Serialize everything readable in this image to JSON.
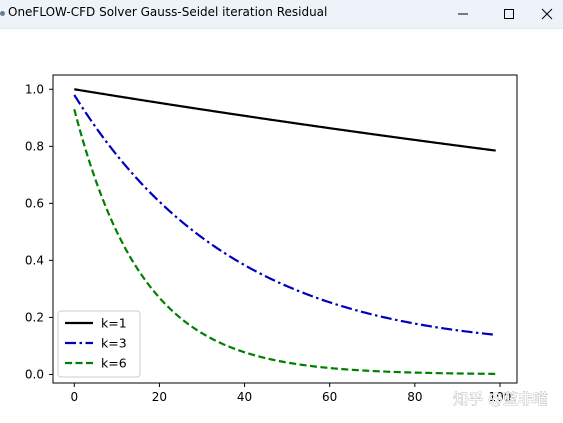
{
  "window": {
    "title": "OneFLOW-CFD Solver Gauss-Seidel iteration Residual",
    "controls": [
      "minimize",
      "maximize",
      "close"
    ]
  },
  "watermark": "知乎 @蓝非喵",
  "chart_data": {
    "type": "line",
    "xlim": [
      -5,
      104
    ],
    "ylim": [
      -0.03,
      1.05
    ],
    "xticks": [
      0,
      20,
      40,
      60,
      80,
      100
    ],
    "yticks": [
      0.0,
      0.2,
      0.4,
      0.6,
      0.8,
      1.0
    ],
    "grid": false,
    "legend_position": "lower-left",
    "series": [
      {
        "name": "k=1",
        "color": "#000000",
        "style": "solid",
        "k": 1,
        "x": [
          0,
          20,
          40,
          60,
          80,
          99
        ],
        "y": [
          1.0,
          0.951,
          0.905,
          0.861,
          0.819,
          0.785
        ]
      },
      {
        "name": "k=3",
        "color": "#0000bf",
        "style": "dashdot",
        "k": 3,
        "x": [
          0,
          20,
          40,
          60,
          80,
          99
        ],
        "y": [
          0.98,
          0.606,
          0.367,
          0.222,
          0.135,
          0.139
        ]
      },
      {
        "name": "k=6",
        "color": "#007f00",
        "style": "dashed",
        "k": 6,
        "x": [
          0,
          20,
          40,
          60,
          80,
          99
        ],
        "y": [
          0.93,
          0.301,
          0.091,
          0.027,
          0.008,
          0.002
        ]
      }
    ]
  }
}
